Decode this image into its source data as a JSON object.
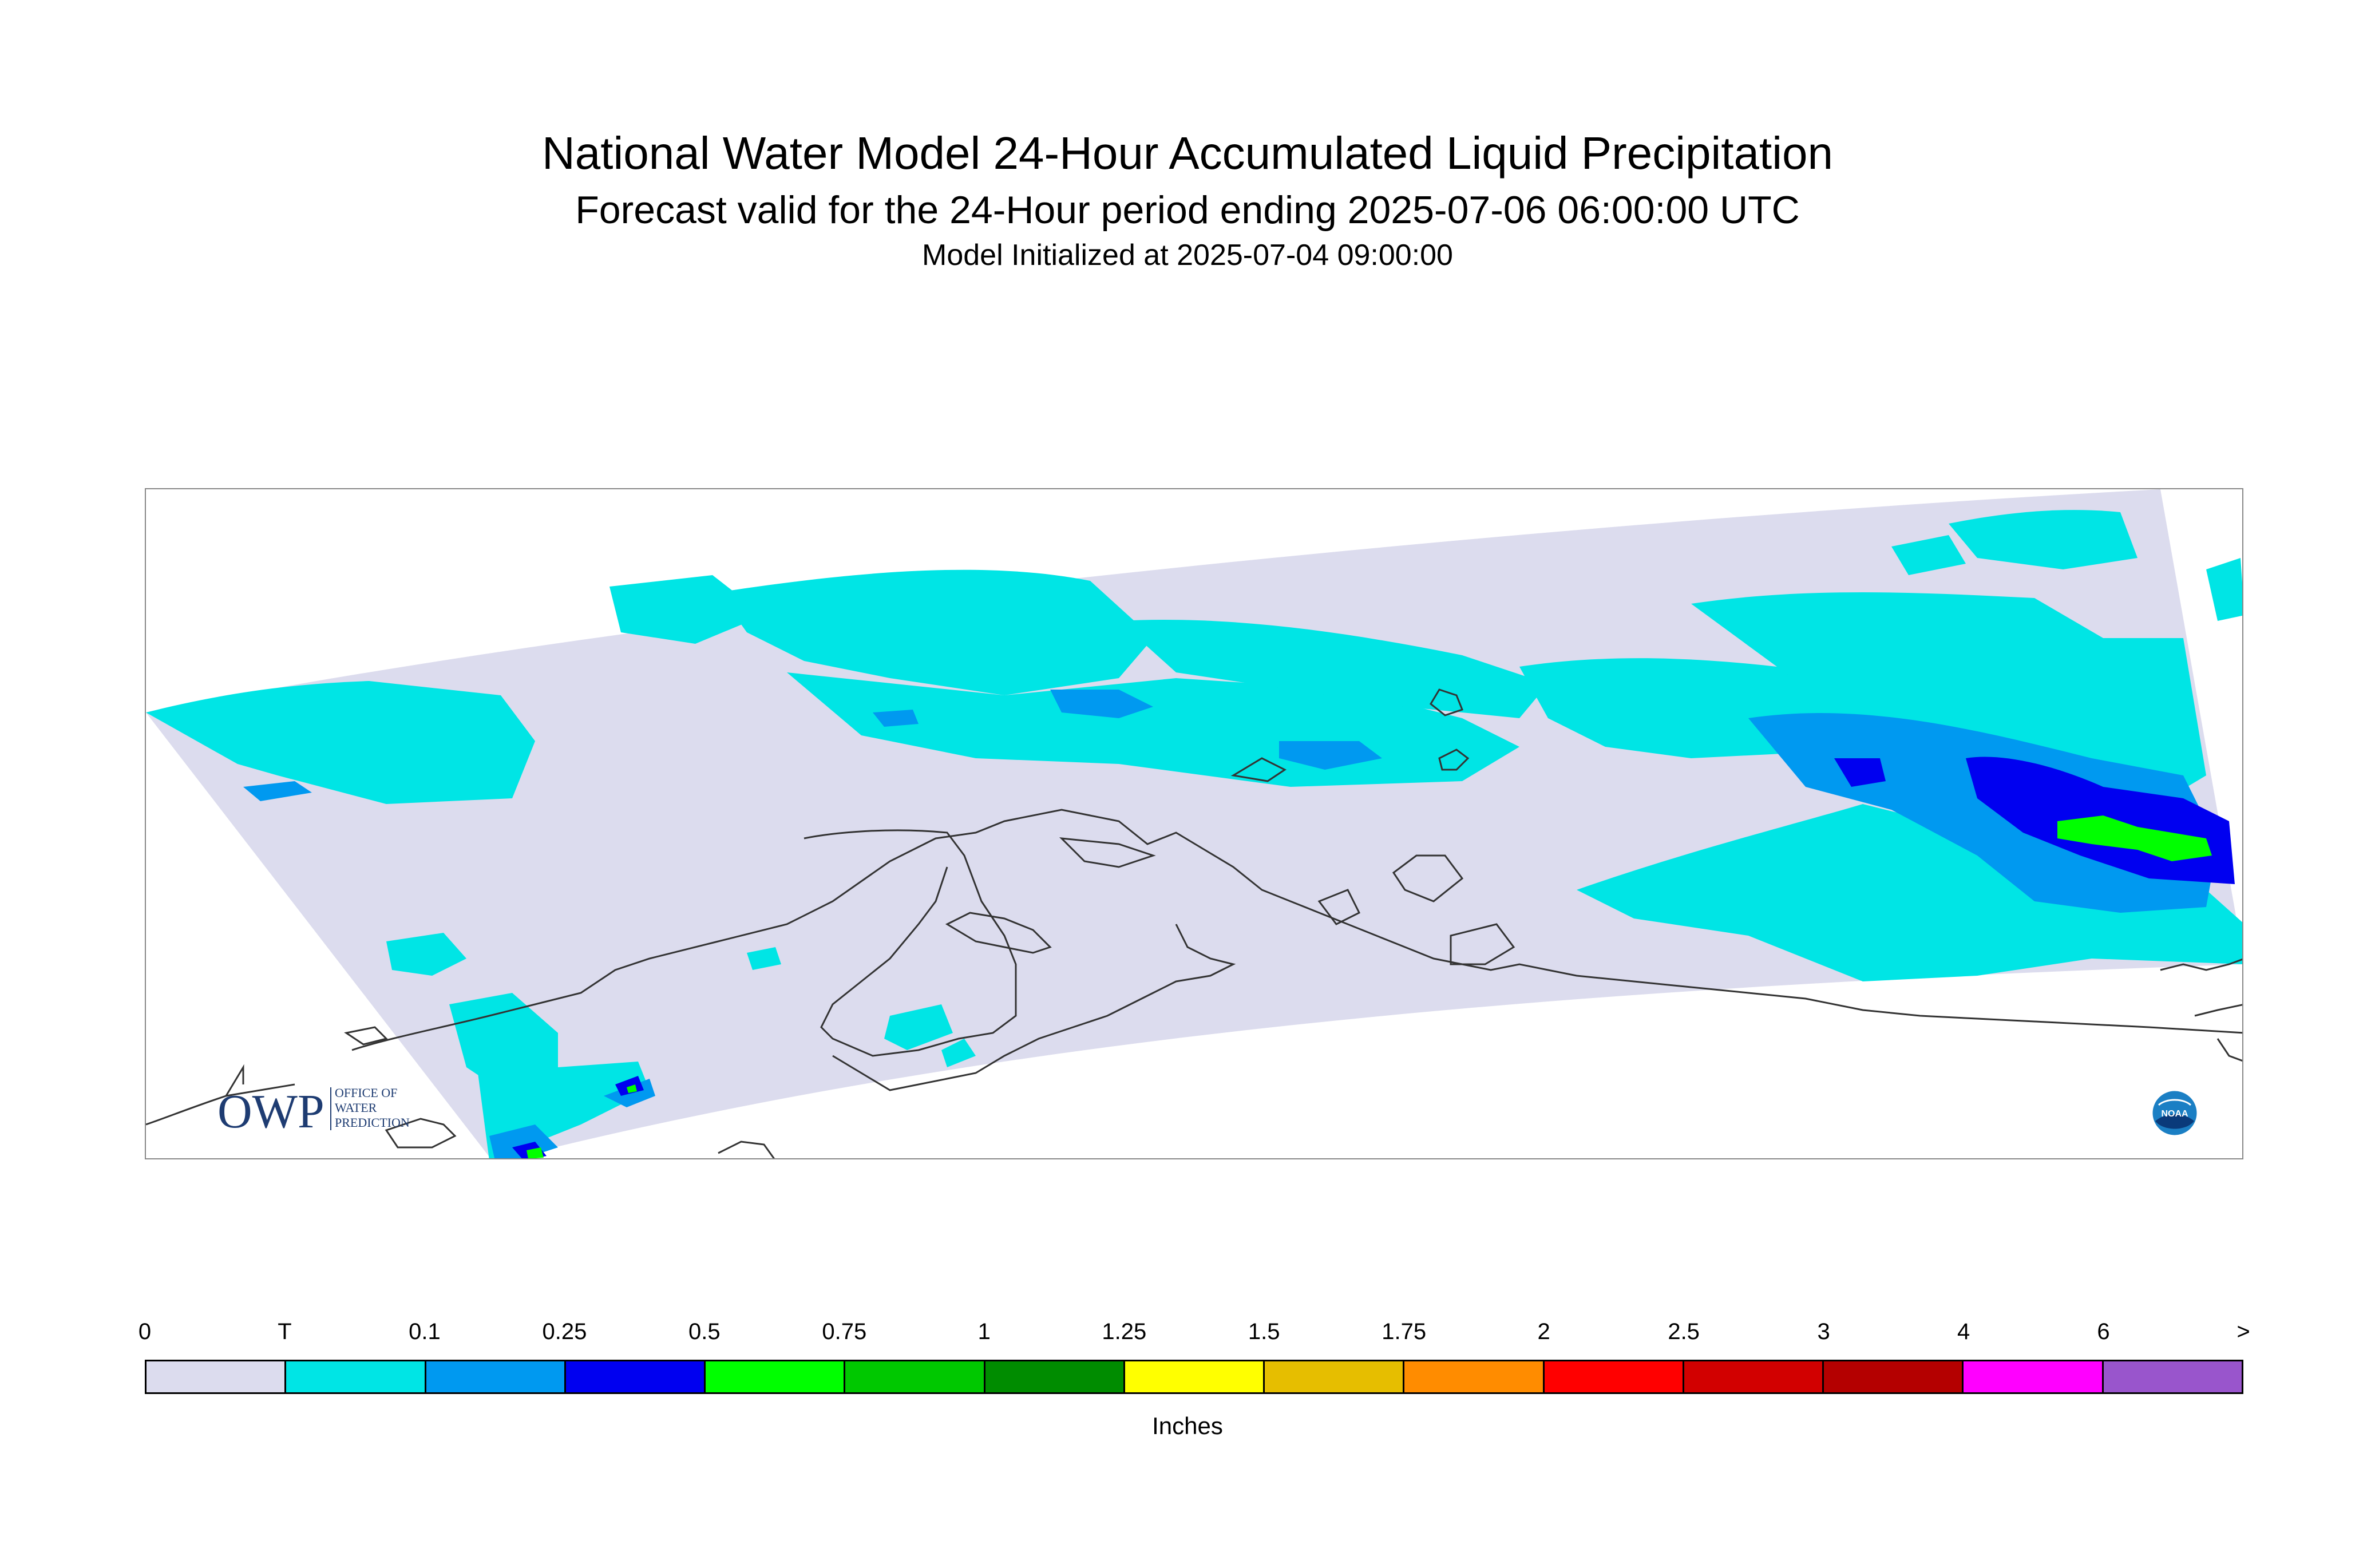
{
  "header": {
    "title": "National Water Model 24-Hour Accumulated Liquid Precipitation",
    "subtitle": "Forecast valid for the 24-Hour period ending 2025-07-06 06:00:00 UTC",
    "init": "Model Initialized at 2025-07-04 09:00:00"
  },
  "logos": {
    "owp_mark": "OWP",
    "owp_line1": "OFFICE OF",
    "owp_line2": "WATER",
    "owp_line3": "PREDICTION",
    "noaa": "NOAA"
  },
  "legend": {
    "labels": [
      "0",
      "T",
      "0.1",
      "0.25",
      "0.5",
      "0.75",
      "1",
      "1.25",
      "1.5",
      "1.75",
      "2",
      "2.5",
      "3",
      "4",
      "6",
      ">"
    ],
    "colors": [
      "#dcdcee",
      "#00e5e5",
      "#0099f0",
      "#0000f0",
      "#00ff00",
      "#00c800",
      "#008c00",
      "#ffff00",
      "#e6be00",
      "#ff8c00",
      "#ff0000",
      "#d20000",
      "#b40000",
      "#ff00ff",
      "#9955cc"
    ],
    "units": "Inches"
  },
  "map": {
    "domain_color": "#dcdcee",
    "coast_color": "#333333",
    "precip_colors": {
      "trace": "#00e5e5",
      "light": "#0099f0",
      "medium": "#0000f0",
      "heavy": "#00ff00",
      "heavier": "#00c800"
    }
  }
}
